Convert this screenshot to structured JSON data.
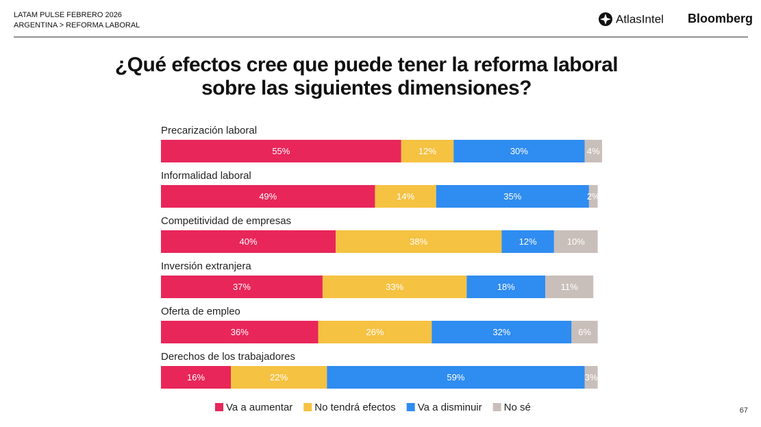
{
  "header": {
    "line1": "LATAM PULSE FEBRERO 2026",
    "line2": "ARGENTINA > REFORMA LABORAL",
    "brand1": "AtlasIntel",
    "brand2": "Bloomberg"
  },
  "page_number": "67",
  "chart_data": {
    "type": "bar",
    "orientation": "horizontal",
    "stacked": true,
    "title": "¿Qué efectos cree que puede tener la reforma laboral sobre las siguientes dimensiones?",
    "categories": [
      "Precarización laboral",
      "Informalidad laboral",
      "Competitividad de empresas",
      "Inversión extranjera",
      "Oferta de empleo",
      "Derechos de los trabajadores"
    ],
    "series": [
      {
        "name": "Va a aumentar",
        "color": "#e8265a",
        "values": [
          55,
          49,
          40,
          37,
          36,
          16
        ],
        "value_labels": [
          "55%",
          "49%",
          "40%",
          "37%",
          "36%",
          "16%"
        ]
      },
      {
        "name": "No tendrá efectos",
        "color": "#f5c242",
        "values": [
          12,
          14,
          38,
          33,
          26,
          22
        ],
        "value_labels": [
          "12%",
          "14%",
          "38%",
          "33%",
          "26%",
          "22%"
        ]
      },
      {
        "name": "Va a disminuir",
        "color": "#2f8cf0",
        "values": [
          30,
          35,
          12,
          18,
          32,
          59
        ],
        "value_labels": [
          "30%",
          "35%",
          "12%",
          "18%",
          "32%",
          "59%"
        ]
      },
      {
        "name": "No sé",
        "color": "#c9bfba",
        "values": [
          4,
          2,
          10,
          11,
          6,
          3
        ],
        "value_labels": [
          "4%",
          "2%",
          "10%",
          "11%",
          "6%",
          "3%"
        ]
      }
    ],
    "legend": "bottom"
  }
}
